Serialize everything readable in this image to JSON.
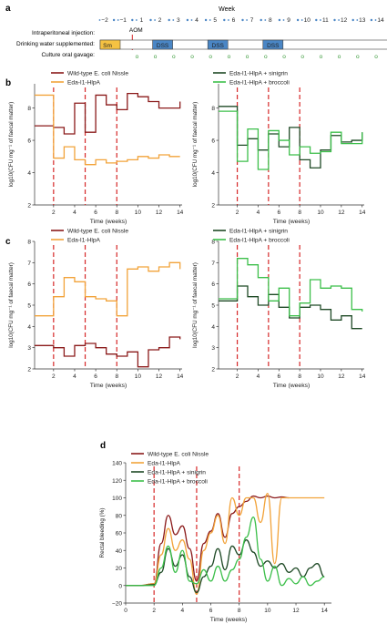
{
  "panel_labels": {
    "a": "a",
    "b": "b",
    "c": "c",
    "d": "d"
  },
  "timeline": {
    "week_label": "Week",
    "weeks": [
      "−2",
      "−1",
      "1",
      "2",
      "3",
      "4",
      "5",
      "6",
      "7",
      "8",
      "9",
      "10",
      "11",
      "12",
      "13",
      "14"
    ],
    "row_labels": {
      "injection": "Intraperitoneal injection:",
      "water": "Drinking water supplemented:",
      "gavage": "Culture oral gavage:"
    },
    "aom_label": "AOM",
    "sm_label": "Sm",
    "dss_label": "DSS",
    "gavage_symbol": "o",
    "colors": {
      "sm": "#f5c242",
      "dss": "#4a86c5",
      "week_tick": "#4a86c5",
      "aom_line": "#d62728",
      "gavage": "#3a9a3a"
    }
  },
  "colors": {
    "wild_type": "#8b1a1a",
    "eda": "#f2a33a",
    "sinigrin": "#1f4a26",
    "broccoli": "#3cbf4a",
    "dss_line": "#d62728"
  },
  "chart_data": [
    {
      "id": "b-left",
      "type": "line",
      "ylabel": "log10(CFU mg⁻¹ of faecal matter)",
      "xlabel": "Time (weeks)",
      "xlim": [
        0.2,
        14.2
      ],
      "ylim": [
        2,
        9.5
      ],
      "xticks": [
        "2",
        "4",
        "6",
        "8",
        "10",
        "12",
        "14"
      ],
      "yticks": [
        "2",
        "4",
        "6",
        "8"
      ],
      "dss_lines": [
        2,
        5,
        8
      ],
      "legend": [
        "Wild-type E. coli Nissle",
        "Eda-I1-HlpA"
      ],
      "series": [
        {
          "name": "Wild-type E. coli Nissle",
          "color_key": "wild_type",
          "step": true,
          "x": [
            0.2,
            2,
            3,
            4,
            5,
            6,
            7,
            8,
            9,
            10,
            11,
            12,
            13,
            14
          ],
          "y": [
            6.9,
            6.8,
            6.4,
            8.3,
            6.5,
            8.8,
            8.2,
            7.9,
            8.9,
            8.7,
            8.4,
            8.0,
            8.0,
            8.4
          ]
        },
        {
          "name": "Eda-I1-HlpA",
          "color_key": "eda",
          "step": true,
          "x": [
            0.2,
            2,
            3,
            4,
            5,
            6,
            7,
            8,
            9,
            10,
            11,
            12,
            13,
            14
          ],
          "y": [
            8.8,
            4.9,
            5.6,
            4.8,
            4.5,
            4.8,
            4.6,
            4.7,
            4.8,
            5.0,
            4.9,
            5.1,
            5.0,
            5.0
          ]
        }
      ]
    },
    {
      "id": "b-right",
      "type": "line",
      "ylabel": "log10(CFU mg⁻¹ of faecal matter)",
      "xlabel": "Time (weeks)",
      "xlim": [
        0.2,
        14.2
      ],
      "ylim": [
        2,
        9.5
      ],
      "xticks": [
        "2",
        "4",
        "6",
        "8",
        "10",
        "12",
        "14"
      ],
      "yticks": [
        "2",
        "4",
        "6",
        "8"
      ],
      "dss_lines": [
        2,
        5,
        8
      ],
      "legend": [
        "Eda-I1-HlpA + sinigrin",
        "Eda-I1-HlpA + broccoli"
      ],
      "series": [
        {
          "name": "Eda-I1-HlpA + sinigrin",
          "color_key": "sinigrin",
          "step": true,
          "x": [
            0.2,
            2,
            3,
            4,
            5,
            6,
            7,
            8,
            9,
            10,
            11,
            12,
            13,
            14
          ],
          "y": [
            8.1,
            5.7,
            6.1,
            5.4,
            6.4,
            5.6,
            6.8,
            4.8,
            4.3,
            5.4,
            6.3,
            5.9,
            6.0,
            6.5
          ]
        },
        {
          "name": "Eda-I1-HlpA + broccoli",
          "color_key": "broccoli",
          "step": true,
          "x": [
            0.2,
            2,
            3,
            4,
            5,
            6,
            7,
            8,
            9,
            10,
            11,
            12,
            13,
            14
          ],
          "y": [
            7.8,
            4.7,
            6.7,
            4.2,
            6.6,
            6.0,
            5.1,
            5.6,
            5.2,
            5.3,
            6.5,
            5.8,
            5.8,
            6.5
          ]
        }
      ]
    },
    {
      "id": "c-left",
      "type": "line",
      "ylabel": "log10(CFU mg⁻¹ of faecal matter)",
      "xlabel": "Time (weeks)",
      "xlim": [
        0.2,
        14.2
      ],
      "ylim": [
        2,
        8
      ],
      "xticks": [
        "2",
        "4",
        "6",
        "8",
        "10",
        "12",
        "14"
      ],
      "yticks": [
        "2",
        "3",
        "4",
        "5",
        "6",
        "7",
        "8"
      ],
      "dss_lines": [
        2,
        5,
        8
      ],
      "legend": [
        "Wild-type E. coli Nissle",
        "Eda-I1-HlpA"
      ],
      "series": [
        {
          "name": "Wild-type E. coli Nissle",
          "color_key": "wild_type",
          "step": true,
          "x": [
            0.2,
            2,
            3,
            4,
            5,
            6,
            7,
            8,
            9,
            10,
            11,
            12,
            13,
            14
          ],
          "y": [
            3.1,
            3.0,
            2.6,
            3.1,
            3.2,
            3.0,
            2.7,
            2.6,
            2.8,
            2.1,
            2.9,
            3.0,
            3.5,
            3.4
          ]
        },
        {
          "name": "Eda-I1-HlpA",
          "color_key": "eda",
          "step": true,
          "x": [
            0.2,
            2,
            3,
            4,
            5,
            6,
            7,
            8,
            9,
            10,
            11,
            12,
            13,
            14
          ],
          "y": [
            4.5,
            5.4,
            6.3,
            6.1,
            5.4,
            5.3,
            5.2,
            4.5,
            6.7,
            6.8,
            6.6,
            6.8,
            7.0,
            6.7
          ]
        }
      ]
    },
    {
      "id": "c-right",
      "type": "line",
      "ylabel": "log10(CFU mg⁻¹ of faecal matter)",
      "xlabel": "Time (weeks)",
      "xlim": [
        0.2,
        14.2
      ],
      "ylim": [
        2,
        8
      ],
      "xticks": [
        "2",
        "4",
        "6",
        "8",
        "10",
        "12",
        "14"
      ],
      "yticks": [
        "2",
        "3",
        "4",
        "5",
        "6",
        "7",
        "8"
      ],
      "dss_lines": [
        2,
        5,
        8
      ],
      "legend": [
        "Eda-I1-HlpA + sinigrin",
        "Eda-I1-HlpA + broccoli"
      ],
      "series": [
        {
          "name": "Eda-I1-HlpA + sinigrin",
          "color_key": "sinigrin",
          "step": true,
          "x": [
            0.2,
            2,
            3,
            4,
            5,
            6,
            7,
            8,
            9,
            10,
            11,
            12,
            13,
            14
          ],
          "y": [
            5.2,
            5.9,
            5.4,
            5.0,
            5.5,
            4.9,
            4.4,
            4.9,
            5.0,
            4.8,
            4.3,
            4.5,
            3.9,
            3.9
          ]
        },
        {
          "name": "Eda-I1-HlpA + broccoli",
          "color_key": "broccoli",
          "step": true,
          "x": [
            0.2,
            2,
            3,
            4,
            5,
            6,
            7,
            8,
            9,
            10,
            11,
            12,
            13,
            14
          ],
          "y": [
            5.3,
            7.2,
            6.9,
            6.3,
            5.2,
            5.8,
            4.5,
            5.1,
            6.2,
            5.8,
            5.9,
            5.8,
            4.8,
            4.7
          ]
        }
      ]
    },
    {
      "id": "d",
      "type": "line",
      "ylabel": "Rectal bleeding (%)",
      "xlabel": "Time (weeks)",
      "xlim": [
        0,
        14.5
      ],
      "ylim": [
        -20,
        140
      ],
      "xticks": [
        "0",
        "2",
        "4",
        "6",
        "8",
        "10",
        "12",
        "14"
      ],
      "yticks": [
        "−20",
        "0",
        "20",
        "40",
        "60",
        "80",
        "100",
        "120",
        "140"
      ],
      "dss_lines": [
        2,
        5,
        8
      ],
      "legend": [
        "Wild-type E. coli Nissle",
        "Eda-I1-HlpA",
        "Eda-I1-HlpA + sinigrin",
        "Eda-I1-HlpA + broccoli"
      ],
      "series": [
        {
          "name": "Wild-type E. coli Nissle",
          "color_key": "wild_type",
          "step": false,
          "x": [
            0,
            1,
            2,
            2.5,
            3,
            3.5,
            4,
            4.5,
            5,
            5.5,
            6,
            6.5,
            7,
            7.5,
            8,
            8.5,
            9,
            9.5,
            10,
            10.5,
            11,
            11.5
          ],
          "y": [
            0,
            0,
            2,
            48,
            80,
            58,
            68,
            42,
            5,
            48,
            62,
            82,
            55,
            82,
            90,
            96,
            102,
            100,
            102,
            100,
            101,
            100
          ]
        },
        {
          "name": "Eda-I1-HlpA",
          "color_key": "eda",
          "step": false,
          "x": [
            0,
            1,
            2,
            2.5,
            3,
            3.5,
            4,
            4.5,
            5,
            5.5,
            6,
            6.5,
            7,
            7.5,
            8,
            8.5,
            9,
            9.5,
            10,
            10.5,
            11,
            11.5,
            12,
            13,
            14
          ],
          "y": [
            0,
            0,
            2,
            35,
            65,
            40,
            52,
            30,
            -10,
            40,
            60,
            80,
            48,
            100,
            80,
            100,
            100,
            72,
            105,
            25,
            100,
            100,
            100,
            100,
            100
          ]
        },
        {
          "name": "Eda-I1-HlpA + sinigrin",
          "color_key": "sinigrin",
          "step": false,
          "x": [
            0,
            1,
            2,
            2.5,
            3,
            3.5,
            4,
            4.5,
            5,
            5.5,
            6,
            6.5,
            7,
            7.5,
            8,
            8.5,
            9,
            9.5,
            10,
            10.5,
            11,
            11.5,
            12,
            12.5,
            13,
            13.5,
            14
          ],
          "y": [
            0,
            0,
            1,
            15,
            42,
            22,
            35,
            10,
            -8,
            10,
            22,
            42,
            18,
            45,
            35,
            52,
            38,
            22,
            28,
            20,
            25,
            15,
            20,
            10,
            20,
            25,
            10
          ]
        },
        {
          "name": "Eda-I1-HlpA + broccoli",
          "color_key": "broccoli",
          "step": false,
          "x": [
            0,
            1,
            2,
            2.5,
            3,
            3.5,
            4,
            4.5,
            5,
            5.5,
            6,
            6.5,
            7,
            7.5,
            8,
            8.5,
            9,
            9.5,
            10,
            10.5,
            11,
            11.5,
            12,
            12.5,
            13,
            13.5,
            14
          ],
          "y": [
            0,
            0,
            0,
            20,
            45,
            15,
            40,
            5,
            2,
            18,
            5,
            22,
            5,
            18,
            30,
            55,
            78,
            30,
            5,
            22,
            0,
            8,
            2,
            10,
            0,
            5,
            10
          ]
        }
      ]
    }
  ]
}
